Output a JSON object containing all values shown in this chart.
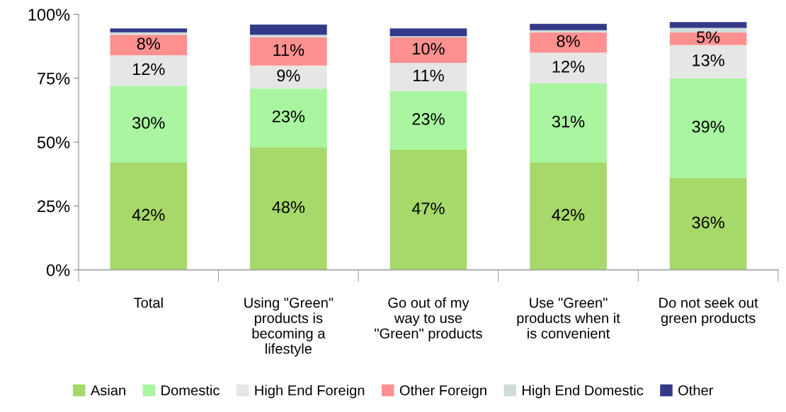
{
  "chart_data": {
    "type": "bar",
    "stacked": true,
    "categories": [
      "Total",
      "Using \"Green\"\nproducts is\nbecoming a\nlifestyle",
      "Go out of my\nway to use\n\"Green\" products",
      "Use \"Green\"\nproducts when it\nis convenient",
      "Do not seek out\ngreen products"
    ],
    "series": [
      {
        "name": "Asian",
        "color": "#a6d86a",
        "values": [
          42,
          48,
          47,
          42,
          36
        ],
        "value_labels": [
          "42%",
          "48%",
          "47%",
          "42%",
          "36%"
        ]
      },
      {
        "name": "Domestic",
        "color": "#a9f5a0",
        "values": [
          30,
          23,
          23,
          31,
          39
        ],
        "value_labels": [
          "30%",
          "23%",
          "23%",
          "31%",
          "39%"
        ]
      },
      {
        "name": "High End Foreign",
        "color": "#e6e6e6",
        "values": [
          12,
          9,
          11,
          12,
          13
        ],
        "value_labels": [
          "12%",
          "9%",
          "11%",
          "12%",
          "13%"
        ]
      },
      {
        "name": "Other Foreign",
        "color": "#ff9090",
        "values": [
          8,
          11,
          10,
          8,
          5
        ],
        "value_labels": [
          "8%",
          "11%",
          "10%",
          "8%",
          "5%"
        ]
      },
      {
        "name": "High End Domestic",
        "color": "#d0dcdc",
        "values": [
          1,
          1,
          0.5,
          0.8,
          1.7
        ]
      },
      {
        "name": "Other",
        "color": "#333a8a",
        "values": [
          1.5,
          4,
          3,
          2.5,
          2.3
        ]
      }
    ],
    "ylim": [
      0,
      100
    ],
    "yticks": [
      {
        "value": 0,
        "label": "0%"
      },
      {
        "value": 25,
        "label": "25%"
      },
      {
        "value": 50,
        "label": "50%"
      },
      {
        "value": 75,
        "label": "75%"
      },
      {
        "value": 100,
        "label": "100%"
      }
    ],
    "grid": false,
    "legend": "bottom"
  }
}
